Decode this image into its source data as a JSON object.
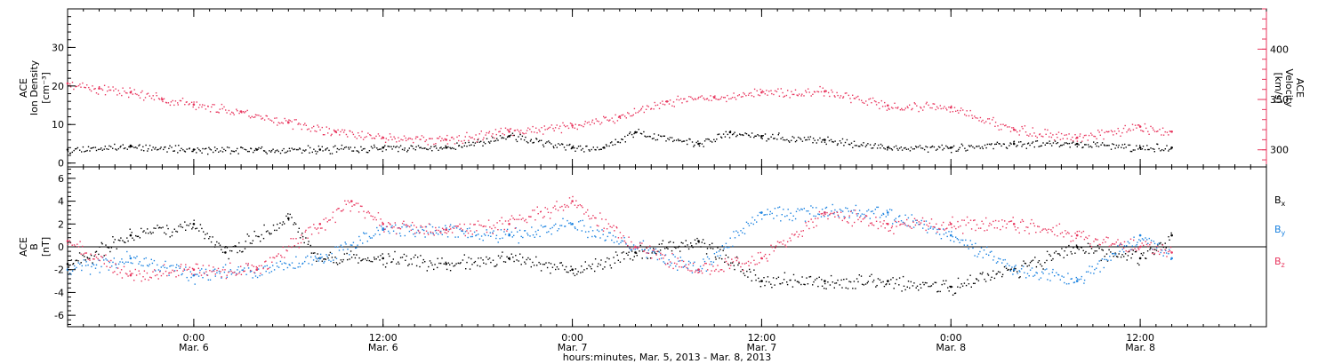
{
  "chart_data": [
    {
      "type": "scatter",
      "panel": "top",
      "time_axis": {
        "start": "2013-03-05T16:00",
        "end": "2013-03-08T20:00",
        "major_ticks": [
          {
            "t": "2013-03-06T00:00",
            "label": "0:00",
            "sublabel": "Mar. 6"
          },
          {
            "t": "2013-03-06T12:00",
            "label": "12:00",
            "sublabel": "Mar. 6"
          },
          {
            "t": "2013-03-07T00:00",
            "label": "0:00",
            "sublabel": "Mar. 7"
          },
          {
            "t": "2013-03-07T12:00",
            "label": "12:00",
            "sublabel": "Mar. 7"
          },
          {
            "t": "2013-03-08T00:00",
            "label": "0:00",
            "sublabel": "Mar. 8"
          },
          {
            "t": "2013-03-08T12:00",
            "label": "12:00",
            "sublabel": "Mar. 8"
          }
        ],
        "minor_tick_hours": 1
      },
      "left_axis": {
        "label_lines": [
          "ACE",
          "Ion Density",
          "[cm⁻³]"
        ],
        "ylim": [
          -1,
          40
        ],
        "ticks": [
          0,
          10,
          20,
          30
        ],
        "tick_labels": [
          "0",
          "10",
          "20",
          "30"
        ]
      },
      "right_axis": {
        "label_lines": [
          "ACE",
          "Velocity",
          "[km/s]"
        ],
        "ylim": [
          283,
          440
        ],
        "ticks": [
          300,
          350,
          400
        ],
        "tick_labels": [
          "300",
          "350",
          "400"
        ],
        "color": "#e8365e"
      },
      "series": [
        {
          "color": "#000000",
          "axis": "left",
          "x": [
            "2013-03-05T16:00",
            "2013-03-05T20:00",
            "2013-03-06T00:00",
            "2013-03-06T04:00",
            "2013-03-06T08:00",
            "2013-03-06T12:00",
            "2013-03-06T16:00",
            "2013-03-06T20:00",
            "2013-03-07T00:00",
            "2013-03-07T02:00",
            "2013-03-07T04:00",
            "2013-03-07T08:00",
            "2013-03-07T10:00",
            "2013-03-07T12:00",
            "2013-03-07T16:00",
            "2013-03-07T20:00",
            "2013-03-08T00:00",
            "2013-03-08T04:00",
            "2013-03-08T08:00",
            "2013-03-08T12:00",
            "2013-03-08T14:00"
          ],
          "y": [
            3.5,
            4.5,
            3.5,
            3.5,
            3.5,
            4,
            4,
            7,
            4,
            4,
            8,
            5,
            8,
            7,
            6,
            4,
            4,
            5,
            5,
            4,
            4
          ]
        },
        {
          "color": "#e8365e",
          "axis": "right",
          "x": [
            "2013-03-05T16:00",
            "2013-03-05T18:00",
            "2013-03-05T20:00",
            "2013-03-05T22:00",
            "2013-03-06T00:00",
            "2013-03-06T03:00",
            "2013-03-06T06:00",
            "2013-03-06T09:00",
            "2013-03-06T12:00",
            "2013-03-06T16:00",
            "2013-03-06T20:00",
            "2013-03-07T00:00",
            "2013-03-07T03:00",
            "2013-03-07T06:00",
            "2013-03-07T09:00",
            "2013-03-07T12:00",
            "2013-03-07T16:00",
            "2013-03-07T20:00",
            "2013-03-08T00:00",
            "2013-03-08T04:00",
            "2013-03-08T08:00",
            "2013-03-08T12:00",
            "2013-03-08T14:00"
          ],
          "y": [
            366,
            361,
            357,
            350,
            345,
            338,
            327,
            318,
            312,
            310,
            318,
            324,
            333,
            348,
            352,
            357,
            358,
            344,
            342,
            320,
            312,
            323,
            318
          ]
        }
      ]
    },
    {
      "type": "scatter",
      "panel": "bottom",
      "left_axis": {
        "label_lines": [
          "ACE",
          "B",
          "[nT]"
        ],
        "ylim": [
          -7,
          7
        ],
        "ticks": [
          -6,
          -4,
          -2,
          0,
          2,
          4,
          6
        ],
        "tick_labels": [
          "-6",
          "-4",
          "-2",
          "0",
          "2",
          "4",
          "6"
        ],
        "zero_line": true
      },
      "legend": {
        "placement": "right"
      },
      "series": [
        {
          "name": "Bx",
          "color": "#000000",
          "x": [
            "2013-03-05T16:00",
            "2013-03-05T20:00",
            "2013-03-06T00:00",
            "2013-03-06T02:00",
            "2013-03-06T06:00",
            "2013-03-06T08:00",
            "2013-03-06T12:00",
            "2013-03-06T16:00",
            "2013-03-06T20:00",
            "2013-03-07T00:00",
            "2013-03-07T04:00",
            "2013-03-07T08:00",
            "2013-03-07T12:00",
            "2013-03-07T16:00",
            "2013-03-07T20:00",
            "2013-03-08T00:00",
            "2013-03-08T04:00",
            "2013-03-08T08:00",
            "2013-03-08T12:00",
            "2013-03-08T14:00"
          ],
          "y": [
            -1.5,
            1,
            2,
            -0.5,
            2.5,
            -1,
            -1,
            -1.5,
            -1,
            -2,
            -0.5,
            0.5,
            -3,
            -3,
            -3,
            -3.5,
            -2,
            0,
            -1,
            1
          ]
        },
        {
          "name": "By",
          "color": "#1a82e0",
          "x": [
            "2013-03-05T16:00",
            "2013-03-05T20:00",
            "2013-03-06T00:00",
            "2013-03-06T04:00",
            "2013-03-06T08:00",
            "2013-03-06T12:00",
            "2013-03-06T16:00",
            "2013-03-06T20:00",
            "2013-03-07T00:00",
            "2013-03-07T04:00",
            "2013-03-07T08:00",
            "2013-03-07T12:00",
            "2013-03-07T16:00",
            "2013-03-07T20:00",
            "2013-03-08T00:00",
            "2013-03-08T04:00",
            "2013-03-08T08:00",
            "2013-03-08T12:00",
            "2013-03-08T14:00"
          ],
          "y": [
            -2,
            -1,
            -2.5,
            -2,
            -1,
            1.5,
            1.5,
            1,
            2,
            0,
            -2,
            3,
            3,
            3,
            1,
            -2,
            -3,
            1,
            -1
          ]
        },
        {
          "name": "Bz",
          "color": "#e8365e",
          "x": [
            "2013-03-05T16:00",
            "2013-03-05T20:00",
            "2013-03-06T00:00",
            "2013-03-06T04:00",
            "2013-03-06T08:00",
            "2013-03-06T10:00",
            "2013-03-06T12:00",
            "2013-03-06T16:00",
            "2013-03-06T20:00",
            "2013-03-07T00:00",
            "2013-03-07T04:00",
            "2013-03-07T08:00",
            "2013-03-07T12:00",
            "2013-03-07T16:00",
            "2013-03-07T20:00",
            "2013-03-08T00:00",
            "2013-03-08T04:00",
            "2013-03-08T08:00",
            "2013-03-08T12:00",
            "2013-03-08T14:00"
          ],
          "y": [
            0.5,
            -2.5,
            -2,
            -2,
            2,
            4,
            2,
            1.5,
            2,
            4,
            0,
            -2,
            -1,
            3,
            2,
            2,
            2,
            1,
            0,
            -0.5
          ]
        }
      ]
    }
  ],
  "footer": {
    "x_axis_title": "hours:minutes, Mar.  5, 2013 - Mar.  8, 2013"
  },
  "legend_labels": {
    "bx": {
      "base": "B",
      "sub": "x"
    },
    "by": {
      "base": "B",
      "sub": "y"
    },
    "bz": {
      "base": "B",
      "sub": "z"
    }
  }
}
